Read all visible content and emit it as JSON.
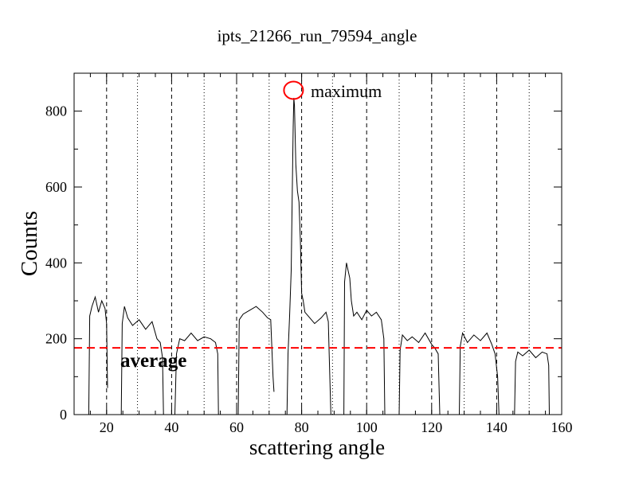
{
  "chart_data": {
    "type": "line",
    "title": "ipts_21266_run_79594_angle",
    "xlabel": "scattering angle",
    "ylabel": "Counts",
    "xlim": [
      10,
      160
    ],
    "ylim": [
      0,
      900
    ],
    "xticks": [
      20,
      40,
      60,
      80,
      100,
      120,
      140,
      160
    ],
    "yticks": [
      0,
      200,
      400,
      600,
      800
    ],
    "grid": false,
    "legend": "none",
    "series_color": "#000000",
    "average": {
      "label": "average",
      "value": 176,
      "color": "#ff0000",
      "label_color": "#0000ff"
    },
    "maximum": {
      "label": "maximum",
      "x": 77.5,
      "y": 855,
      "marker_color": "#ff0000",
      "label_color": "#0000ff"
    },
    "dashed_lines_x": [
      20,
      40,
      60,
      80,
      100,
      120,
      140
    ],
    "dotted_lines_x": [
      29.5,
      50,
      70,
      89.5,
      110,
      130,
      150
    ],
    "segments": [
      {
        "x": [
          14.5,
          14.8,
          15.5,
          16.5,
          17.5,
          18.5,
          19.5,
          20.0,
          20.3
        ],
        "y": [
          0,
          260,
          285,
          310,
          270,
          300,
          280,
          240,
          70
        ]
      },
      {
        "x": [
          24.5,
          24.8,
          25.5,
          26.5,
          28.0,
          30.0,
          32.0,
          34.0,
          35.5,
          36.5,
          37.2,
          37.5
        ],
        "y": [
          0,
          240,
          285,
          255,
          235,
          250,
          225,
          245,
          200,
          190,
          150,
          0
        ]
      },
      {
        "x": [
          41.0,
          41.5,
          42.5,
          44.0,
          46.0,
          48.0,
          50.0,
          52.0,
          53.5,
          54.2,
          54.4
        ],
        "y": [
          0,
          160,
          200,
          195,
          215,
          195,
          205,
          200,
          190,
          160,
          0
        ]
      },
      {
        "x": [
          60.5,
          60.8,
          62.0,
          64.0,
          66.0,
          68.0,
          69.5,
          70.5,
          71.2,
          71.5
        ],
        "y": [
          0,
          250,
          265,
          275,
          285,
          270,
          255,
          250,
          100,
          60
        ]
      },
      {
        "x": [
          75.5,
          75.8,
          76.3,
          76.8,
          77.1,
          77.4,
          77.6,
          77.8,
          78.2,
          78.7,
          79.2,
          79.6,
          80.0,
          80.5,
          81.0,
          82.0,
          84.0,
          86.0,
          87.5,
          88.2,
          88.5,
          89.0
        ],
        "y": [
          0,
          160,
          260,
          380,
          580,
          760,
          835,
          815,
          660,
          590,
          560,
          460,
          320,
          300,
          270,
          260,
          240,
          255,
          270,
          245,
          150,
          0
        ]
      },
      {
        "x": [
          93.0,
          93.2,
          93.8,
          94.3,
          94.8,
          95.3,
          96.0,
          97.0,
          98.5,
          100.0,
          101.5,
          103.0,
          104.5,
          105.3,
          105.6
        ],
        "y": [
          0,
          350,
          400,
          380,
          360,
          300,
          260,
          270,
          250,
          275,
          260,
          270,
          250,
          200,
          0
        ]
      },
      {
        "x": [
          110.0,
          110.3,
          111.0,
          112.5,
          114.0,
          116.0,
          118.0,
          120.0,
          121.0,
          122.0,
          122.5
        ],
        "y": [
          0,
          170,
          210,
          195,
          205,
          190,
          215,
          185,
          175,
          160,
          0
        ]
      },
      {
        "x": [
          128.5,
          128.8,
          129.5,
          131.0,
          133.0,
          135.0,
          137.0,
          138.5,
          139.5,
          140.3,
          140.7
        ],
        "y": [
          0,
          180,
          215,
          190,
          210,
          195,
          215,
          185,
          160,
          100,
          0
        ]
      },
      {
        "x": [
          145.5,
          145.8,
          146.5,
          148.0,
          150.0,
          152.0,
          154.0,
          155.5,
          156.0,
          156.2
        ],
        "y": [
          0,
          140,
          165,
          155,
          170,
          150,
          165,
          160,
          130,
          0
        ]
      }
    ]
  }
}
